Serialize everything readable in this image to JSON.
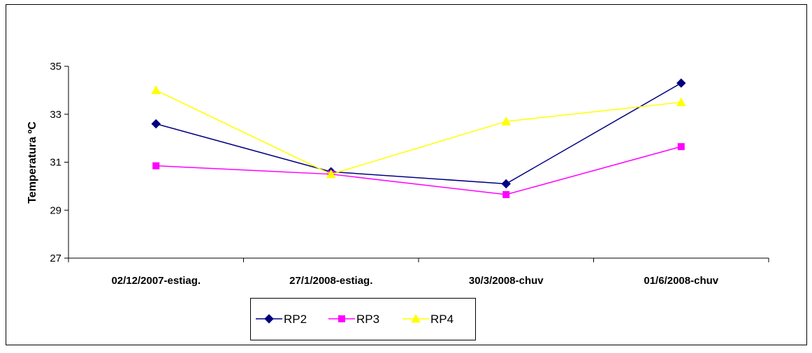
{
  "chart_data": {
    "type": "line",
    "title": "",
    "xlabel": "",
    "ylabel": "Temperatura ºC",
    "ylim": [
      27,
      35
    ],
    "yticks": [
      27,
      29,
      31,
      33,
      35
    ],
    "categories": [
      "02/12/2007-estiag.",
      "27/1/2008-estiag.",
      "30/3/2008-chuv",
      "01/6/2008-chuv"
    ],
    "grid": false,
    "legend_position": "bottom-center",
    "series": [
      {
        "name": "RP2",
        "values": [
          32.6,
          30.6,
          30.1,
          34.3
        ],
        "color": "#000080",
        "marker": "diamond"
      },
      {
        "name": "RP3",
        "values": [
          30.85,
          30.5,
          29.65,
          31.65
        ],
        "color": "#FF00FF",
        "marker": "square"
      },
      {
        "name": "RP4",
        "values": [
          34.0,
          30.5,
          32.7,
          33.5
        ],
        "color": "#FFFF00",
        "marker": "triangle"
      }
    ]
  }
}
